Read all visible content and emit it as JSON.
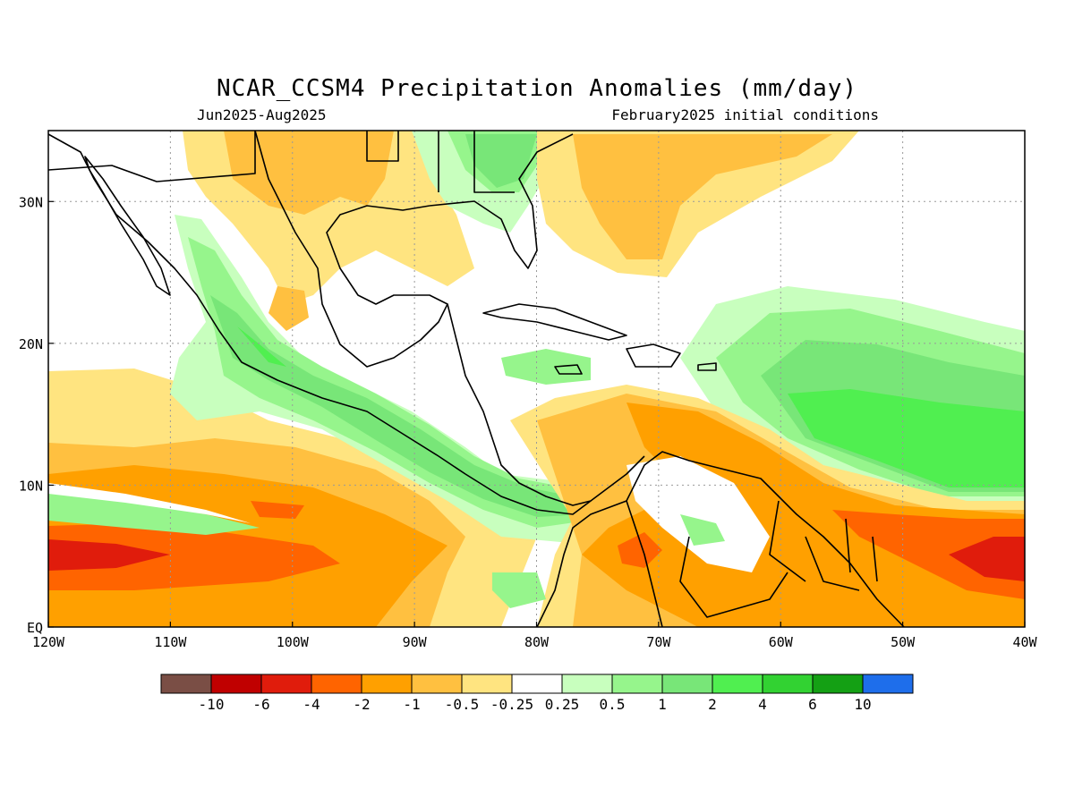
{
  "header": {
    "title": "NCAR_CCSM4 Precipitation Anomalies (mm/day)",
    "period": "Jun2025-Aug2025",
    "init": "February2025 initial conditions"
  },
  "map": {
    "lon_range": [
      -120,
      -40
    ],
    "lat_range": [
      0,
      35
    ],
    "lon_ticks": [
      {
        "value": -120,
        "label": "120W"
      },
      {
        "value": -110,
        "label": "110W"
      },
      {
        "value": -100,
        "label": "100W"
      },
      {
        "value": -90,
        "label": "90W"
      },
      {
        "value": -80,
        "label": "80W"
      },
      {
        "value": -70,
        "label": "70W"
      },
      {
        "value": -60,
        "label": "60W"
      },
      {
        "value": -50,
        "label": "50W"
      },
      {
        "value": -40,
        "label": "40W"
      }
    ],
    "lat_ticks": [
      {
        "value": 0,
        "label": "EQ"
      },
      {
        "value": 10,
        "label": "10N"
      },
      {
        "value": 20,
        "label": "20N"
      },
      {
        "value": 30,
        "label": "30N"
      }
    ],
    "grid": true
  },
  "legend": {
    "colors": [
      "#7a4e45",
      "#c00000",
      "#e01c0c",
      "#ff6400",
      "#ffa000",
      "#ffc040",
      "#ffe480",
      "#ffffff",
      "#c8ffbe",
      "#96f58c",
      "#78e678",
      "#50ef50",
      "#32d232",
      "#14a014",
      "#1e6eeb"
    ],
    "labels": [
      "-10",
      "-6",
      "-4",
      "-2",
      "-1",
      "-0.5",
      "-0.25",
      "0.25",
      "0.5",
      "1",
      "2",
      "4",
      "6",
      "10"
    ]
  }
}
